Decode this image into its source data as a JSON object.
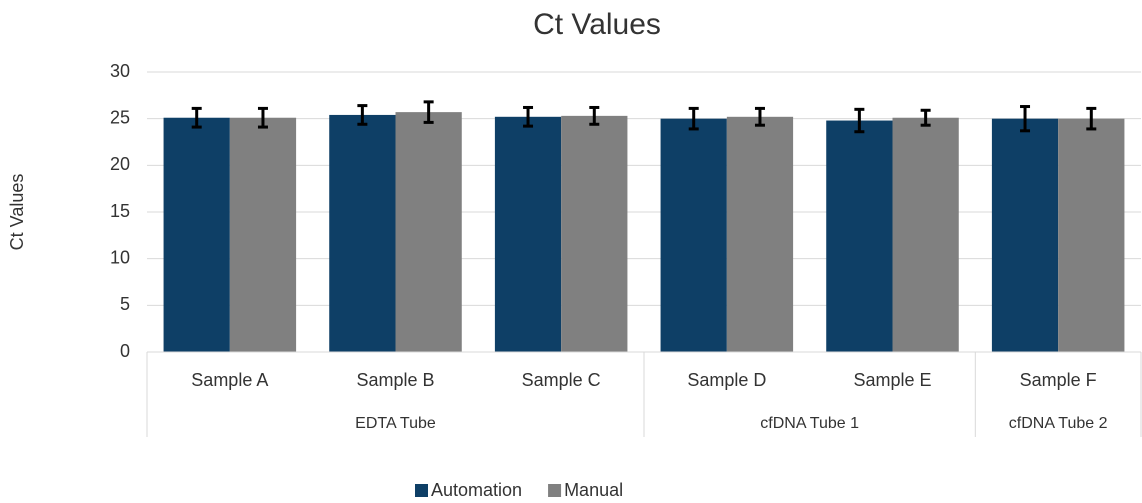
{
  "chart_data": {
    "type": "bar",
    "title": "Ct Values",
    "y_label": "Ct Values",
    "groups": [
      {
        "name": "EDTA Tube",
        "categories": [
          "Sample A",
          "Sample B",
          "Sample C"
        ]
      },
      {
        "name": "cfDNA Tube 1",
        "categories": [
          "Sample D",
          "Sample E"
        ]
      },
      {
        "name": "cfDNA Tube 2",
        "categories": [
          "Sample F"
        ]
      }
    ],
    "series": [
      {
        "name": "Automation",
        "color": "#0e3f66",
        "values": [
          25.1,
          25.4,
          25.2,
          25.0,
          24.8,
          25.0
        ],
        "errors": [
          1.0,
          1.0,
          1.0,
          1.1,
          1.2,
          1.3
        ]
      },
      {
        "name": "Manual",
        "color": "#808080",
        "values": [
          25.1,
          25.7,
          25.3,
          25.2,
          25.1,
          25.0
        ],
        "errors": [
          1.0,
          1.1,
          0.9,
          0.9,
          0.8,
          1.1
        ]
      }
    ],
    "ylim": [
      0,
      30
    ],
    "yticks": [
      0,
      5,
      10,
      15,
      20,
      25,
      30
    ],
    "grid": true,
    "legend": "bottom"
  }
}
